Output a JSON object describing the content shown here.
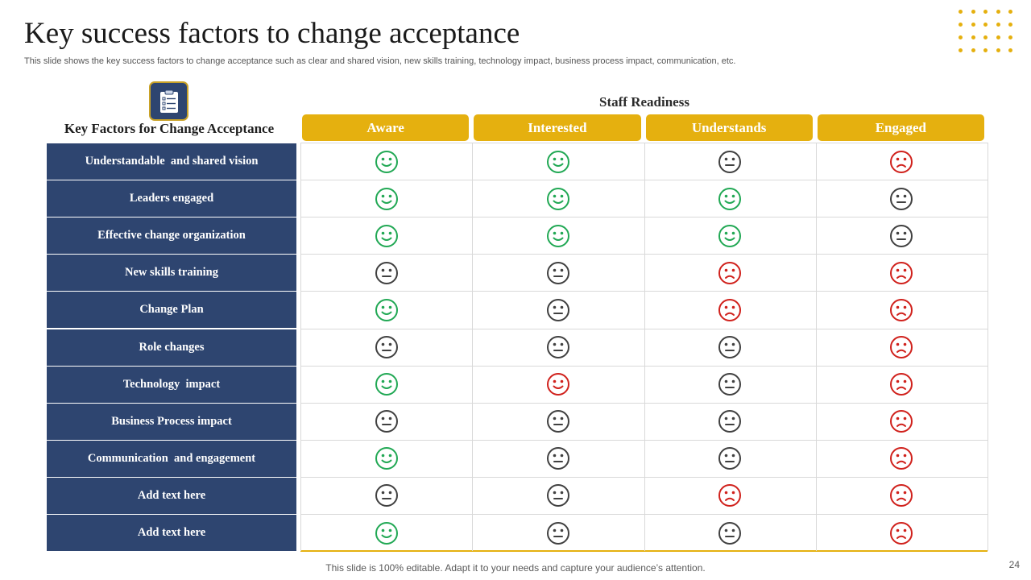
{
  "slide": {
    "title": "Key success factors to change acceptance",
    "subtitle": "This slide shows the key success factors to change acceptance such as clear and shared vision, new skills training, technology impact, business process impact, communication, etc.",
    "footer": "This slide is 100% editable. Adapt it to your needs and capture your audience’s attention.",
    "page_number": "24"
  },
  "colors": {
    "navy": "#2e4570",
    "gold": "#e5b00f",
    "positive": "#21a854",
    "neutral": "#404040",
    "negative": "#d0211c"
  },
  "icons": {
    "header_icon": "checklist-clipboard-icon",
    "positive": "happy-face-icon",
    "neutral": "neutral-face-icon",
    "negative": "sad-face-icon",
    "decor": "dot-grid"
  },
  "table": {
    "factors_heading": "Key Factors for Change Acceptance",
    "readiness_heading": "Staff Readiness",
    "columns": [
      "Aware",
      "Interested",
      "Understands",
      "Engaged"
    ],
    "rows": [
      {
        "label": "Understandable  and shared vision",
        "status": [
          "positive",
          "positive",
          "neutral",
          "negative"
        ]
      },
      {
        "label": "Leaders engaged",
        "status": [
          "positive",
          "positive",
          "positive",
          "neutral"
        ]
      },
      {
        "label": "Effective change organization",
        "status": [
          "positive",
          "positive",
          "positive",
          "neutral"
        ]
      },
      {
        "label": "New skills training",
        "status": [
          "neutral",
          "neutral",
          "negative",
          "negative"
        ]
      },
      {
        "label": "Change Plan",
        "status": [
          "positive",
          "neutral",
          "negative",
          "negative"
        ]
      },
      {
        "label": "Role changes",
        "status": [
          "neutral",
          "neutral",
          "neutral",
          "negative"
        ]
      },
      {
        "label": "Technology  impact",
        "status": [
          "positive",
          "negative-smile",
          "neutral",
          "negative"
        ]
      },
      {
        "label": "Business Process impact",
        "status": [
          "neutral",
          "neutral",
          "neutral",
          "negative"
        ]
      },
      {
        "label": "Communication  and engagement",
        "status": [
          "positive",
          "neutral",
          "neutral",
          "negative"
        ]
      },
      {
        "label": "Add text here",
        "status": [
          "neutral",
          "neutral",
          "negative",
          "negative"
        ]
      },
      {
        "label": "Add text here",
        "status": [
          "positive",
          "neutral",
          "neutral",
          "negative"
        ]
      }
    ]
  }
}
